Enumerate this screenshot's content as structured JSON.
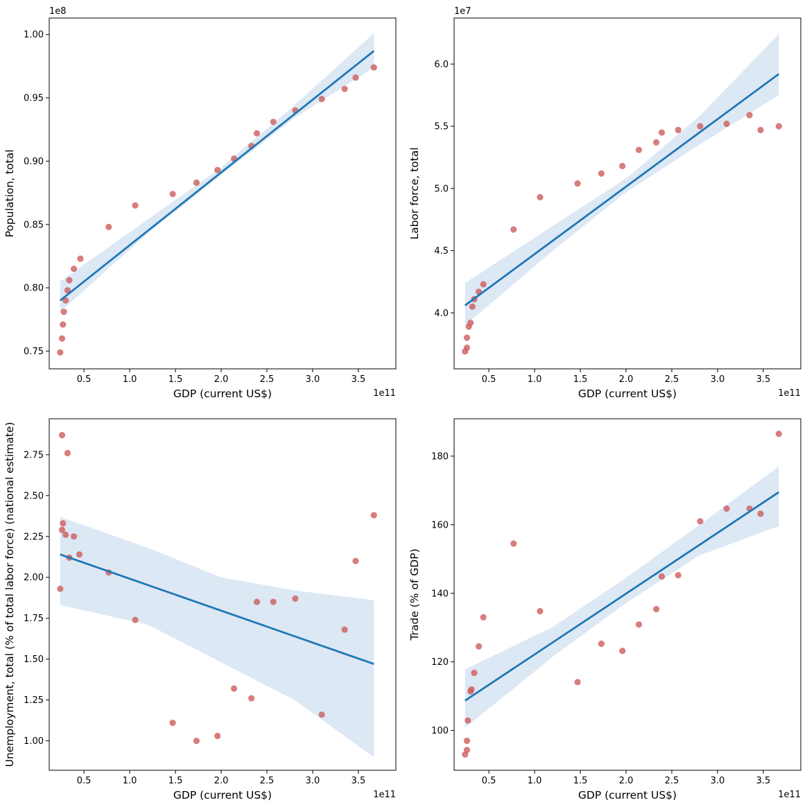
{
  "chart_data": [
    {
      "type": "scatter",
      "xlabel": "GDP (current US$)",
      "ylabel": "Population, total",
      "x_multiplier": "1e11",
      "y_multiplier": "1e8",
      "xlim": [
        0.12,
        3.91
      ],
      "ylim": [
        0.736,
        1.013
      ],
      "xticks": [
        "0.5",
        "1.0",
        "1.5",
        "2.0",
        "2.5",
        "3.0",
        "3.5"
      ],
      "xtick_values": [
        0.5,
        1.0,
        1.5,
        2.0,
        2.5,
        3.0,
        3.5
      ],
      "yticks": [
        "0.75",
        "0.80",
        "0.85",
        "0.90",
        "0.95",
        "1.00"
      ],
      "ytick_values": [
        0.75,
        0.8,
        0.85,
        0.9,
        0.95,
        1.0
      ],
      "points": {
        "x": [
          0.24,
          0.26,
          0.27,
          0.28,
          0.3,
          0.32,
          0.34,
          0.39,
          0.46,
          0.77,
          1.06,
          1.47,
          1.73,
          1.96,
          2.14,
          2.33,
          2.39,
          2.57,
          2.81,
          3.1,
          3.35,
          3.47,
          3.67
        ],
        "y": [
          0.749,
          0.76,
          0.771,
          0.781,
          0.79,
          0.798,
          0.806,
          0.815,
          0.823,
          0.848,
          0.865,
          0.874,
          0.883,
          0.893,
          0.902,
          0.912,
          0.922,
          0.931,
          0.94,
          0.949,
          0.957,
          0.966,
          0.974
        ]
      },
      "fit": {
        "x": [
          0.24,
          3.67
        ],
        "y": [
          0.79,
          0.987
        ]
      },
      "ci": {
        "x": [
          0.24,
          1.2,
          2.0,
          2.8,
          3.67
        ],
        "lower": [
          0.781,
          0.843,
          0.889,
          0.934,
          0.974
        ],
        "upper": [
          0.805,
          0.854,
          0.895,
          0.944,
          1.001
        ]
      },
      "colors": {
        "points": "#cd5c5c",
        "line": "#1f77b4",
        "band": "#aec7e8"
      }
    },
    {
      "type": "scatter",
      "xlabel": "GDP (current US$)",
      "ylabel": "Labor force, total",
      "x_multiplier": "1e11",
      "y_multiplier": "1e7",
      "xlim": [
        0.12,
        3.91
      ],
      "ylim": [
        3.55,
        6.37
      ],
      "xticks": [
        "0.5",
        "1.0",
        "1.5",
        "2.0",
        "2.5",
        "3.0",
        "3.5"
      ],
      "xtick_values": [
        0.5,
        1.0,
        1.5,
        2.0,
        2.5,
        3.0,
        3.5
      ],
      "yticks": [
        "4.0",
        "4.5",
        "5.0",
        "5.5",
        "6.0"
      ],
      "ytick_values": [
        4.0,
        4.5,
        5.0,
        5.5,
        6.0
      ],
      "points": {
        "x": [
          0.24,
          0.26,
          0.26,
          0.28,
          0.3,
          0.32,
          0.34,
          0.39,
          0.44,
          0.77,
          1.06,
          1.47,
          1.73,
          1.96,
          2.14,
          2.33,
          2.39,
          2.57,
          2.81,
          3.1,
          3.35,
          3.47,
          3.67
        ],
        "y": [
          3.69,
          3.72,
          3.8,
          3.89,
          3.92,
          4.05,
          4.11,
          4.17,
          4.23,
          4.67,
          4.93,
          5.04,
          5.12,
          5.18,
          5.31,
          5.37,
          5.45,
          5.47,
          5.5,
          5.52,
          5.59,
          5.47,
          5.5
        ]
      },
      "fit": {
        "x": [
          0.24,
          3.67
        ],
        "y": [
          4.06,
          5.92
        ]
      },
      "ci": {
        "x": [
          0.24,
          1.2,
          2.0,
          2.8,
          3.67
        ],
        "lower": [
          3.9,
          4.5,
          4.97,
          5.35,
          5.75
        ],
        "upper": [
          4.24,
          4.7,
          5.08,
          5.58,
          6.24
        ]
      },
      "colors": {
        "points": "#cd5c5c",
        "line": "#1f77b4",
        "band": "#aec7e8"
      }
    },
    {
      "type": "scatter",
      "xlabel": "GDP (current US$)",
      "ylabel": "Unemployment, total (% of total labor force) (national estimate)",
      "x_multiplier": "1e11",
      "xlim": [
        0.12,
        3.91
      ],
      "ylim": [
        0.82,
        2.97
      ],
      "xticks": [
        "0.5",
        "1.0",
        "1.5",
        "2.0",
        "2.5",
        "3.0",
        "3.5"
      ],
      "xtick_values": [
        0.5,
        1.0,
        1.5,
        2.0,
        2.5,
        3.0,
        3.5
      ],
      "yticks": [
        "1.00",
        "1.25",
        "1.50",
        "1.75",
        "2.00",
        "2.25",
        "2.50",
        "2.75"
      ],
      "ytick_values": [
        1.0,
        1.25,
        1.5,
        1.75,
        2.0,
        2.25,
        2.5,
        2.75
      ],
      "points": {
        "x": [
          0.24,
          0.26,
          0.26,
          0.27,
          0.3,
          0.32,
          0.34,
          0.39,
          0.45,
          0.77,
          1.06,
          1.47,
          1.73,
          1.96,
          2.14,
          2.33,
          2.39,
          2.57,
          2.81,
          3.1,
          3.35,
          3.47,
          3.67
        ],
        "y": [
          1.93,
          2.87,
          2.29,
          2.33,
          2.26,
          2.76,
          2.12,
          2.25,
          2.14,
          2.03,
          1.74,
          1.11,
          1.0,
          1.03,
          1.32,
          1.26,
          1.85,
          1.85,
          1.87,
          1.16,
          1.68,
          2.1,
          2.38
        ]
      },
      "fit": {
        "x": [
          0.24,
          3.67
        ],
        "y": [
          2.14,
          1.47
        ]
      },
      "ci": {
        "x": [
          0.24,
          1.2,
          2.0,
          2.8,
          3.67
        ],
        "lower": [
          1.83,
          1.71,
          1.48,
          1.25,
          0.9
        ],
        "upper": [
          2.37,
          2.18,
          2.0,
          1.92,
          1.86
        ]
      },
      "colors": {
        "points": "#cd5c5c",
        "line": "#1f77b4",
        "band": "#aec7e8"
      }
    },
    {
      "type": "scatter",
      "xlabel": "GDP (current US$)",
      "ylabel": "Trade (% of GDP)",
      "x_multiplier": "1e11",
      "xlim": [
        0.12,
        3.91
      ],
      "ylim": [
        88.4,
        190.9
      ],
      "xticks": [
        "0.5",
        "1.0",
        "1.5",
        "2.0",
        "2.5",
        "3.0",
        "3.5"
      ],
      "xtick_values": [
        0.5,
        1.0,
        1.5,
        2.0,
        2.5,
        3.0,
        3.5
      ],
      "yticks": [
        "100",
        "120",
        "140",
        "160",
        "180"
      ],
      "ytick_values": [
        100,
        120,
        140,
        160,
        180
      ],
      "points": {
        "x": [
          0.24,
          0.26,
          0.26,
          0.27,
          0.3,
          0.31,
          0.34,
          0.39,
          0.44,
          0.77,
          1.06,
          1.47,
          1.73,
          1.96,
          2.14,
          2.33,
          2.39,
          2.57,
          2.81,
          3.1,
          3.35,
          3.47,
          3.67
        ],
        "y": [
          93.0,
          94.3,
          97.0,
          102.9,
          111.4,
          112.0,
          116.8,
          124.5,
          133.0,
          154.5,
          134.8,
          114.1,
          125.3,
          123.2,
          130.9,
          135.4,
          144.9,
          145.3,
          161.0,
          164.7,
          164.7,
          163.2,
          186.5
        ]
      },
      "fit": {
        "x": [
          0.24,
          3.67
        ],
        "y": [
          108.7,
          169.5
        ]
      },
      "ci": {
        "x": [
          0.24,
          1.2,
          2.0,
          2.8,
          3.67
        ],
        "lower": [
          100.8,
          121.5,
          137.2,
          151.0,
          159.6
        ],
        "upper": [
          117.8,
          130.2,
          144.5,
          159.9,
          177.0
        ]
      },
      "colors": {
        "points": "#cd5c5c",
        "line": "#1f77b4",
        "band": "#aec7e8"
      }
    }
  ]
}
